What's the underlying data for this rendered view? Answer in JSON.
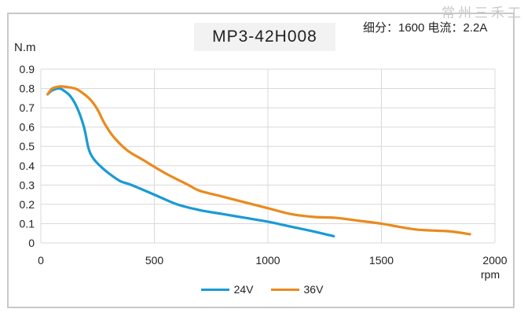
{
  "watermark": "常州三禾工",
  "spec": "细分：1600 电流：2.2A",
  "chart_data": {
    "type": "line",
    "title": "MP3-42H008",
    "xlabel": "rpm",
    "ylabel": "N.m",
    "xlim": [
      0,
      2000
    ],
    "ylim": [
      0,
      0.9
    ],
    "xticks": [
      0,
      500,
      1000,
      1500,
      2000
    ],
    "yticks": [
      0,
      0.1,
      0.2,
      0.3,
      0.4,
      0.5,
      0.6,
      0.7,
      0.8,
      0.9
    ],
    "grid": true,
    "legend": "bottom",
    "series": [
      {
        "name": "24V",
        "color": "#1a9ad6",
        "x": [
          30,
          50,
          80,
          100,
          130,
          160,
          190,
          210,
          230,
          260,
          300,
          350,
          400,
          500,
          600,
          700,
          800,
          900,
          1000,
          1100,
          1200,
          1290
        ],
        "y": [
          0.77,
          0.79,
          0.8,
          0.79,
          0.76,
          0.7,
          0.6,
          0.49,
          0.44,
          0.4,
          0.36,
          0.32,
          0.3,
          0.25,
          0.2,
          0.17,
          0.15,
          0.13,
          0.11,
          0.085,
          0.06,
          0.035
        ]
      },
      {
        "name": "36V",
        "color": "#ea8a1e",
        "x": [
          30,
          50,
          80,
          100,
          150,
          180,
          220,
          250,
          280,
          320,
          380,
          450,
          550,
          650,
          700,
          800,
          900,
          1000,
          1100,
          1200,
          1300,
          1400,
          1500,
          1650,
          1800,
          1890
        ],
        "y": [
          0.77,
          0.8,
          0.81,
          0.81,
          0.8,
          0.78,
          0.74,
          0.69,
          0.62,
          0.55,
          0.48,
          0.43,
          0.36,
          0.3,
          0.27,
          0.24,
          0.21,
          0.18,
          0.15,
          0.135,
          0.13,
          0.115,
          0.1,
          0.07,
          0.06,
          0.045
        ]
      }
    ]
  }
}
